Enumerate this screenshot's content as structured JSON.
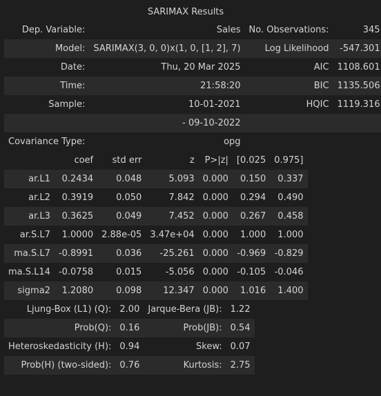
{
  "title": "SARIMAX Results",
  "summary": [
    [
      "Dep. Variable:",
      "Sales",
      "No. Observations:",
      "345"
    ],
    [
      "Model:",
      "SARIMAX(3, 0, 0)x(1, 0, [1, 2], 7)",
      "Log Likelihood",
      "-547.301"
    ],
    [
      "Date:",
      "Thu, 20 Mar 2025",
      "AIC",
      "1108.601"
    ],
    [
      "Time:",
      "21:58:20",
      "BIC",
      "1135.506"
    ],
    [
      "Sample:",
      "10-01-2021",
      "HQIC",
      "1119.316"
    ],
    [
      "",
      "- 09-10-2022",
      "",
      ""
    ],
    [
      "Covariance Type:",
      "opg",
      "",
      ""
    ]
  ],
  "coef_headers": [
    "",
    "coef",
    "std err",
    "z",
    "P>|z|",
    "[0.025",
    "0.975]"
  ],
  "coef_rows": [
    [
      "ar.L1",
      "0.2434",
      "0.048",
      "5.093",
      "0.000",
      "0.150",
      "0.337"
    ],
    [
      "ar.L2",
      "0.3919",
      "0.050",
      "7.842",
      "0.000",
      "0.294",
      "0.490"
    ],
    [
      "ar.L3",
      "0.3625",
      "0.049",
      "7.452",
      "0.000",
      "0.267",
      "0.458"
    ],
    [
      "ar.S.L7",
      "1.0000",
      "2.88e-05",
      "3.47e+04",
      "0.000",
      "1.000",
      "1.000"
    ],
    [
      "ma.S.L7",
      "-0.8991",
      "0.036",
      "-25.261",
      "0.000",
      "-0.969",
      "-0.829"
    ],
    [
      "ma.S.L14",
      "-0.0758",
      "0.015",
      "-5.056",
      "0.000",
      "-0.105",
      "-0.046"
    ],
    [
      "sigma2",
      "1.2080",
      "0.098",
      "12.347",
      "0.000",
      "1.016",
      "1.400"
    ]
  ],
  "diagnostics": [
    [
      "Ljung-Box (L1) (Q):",
      "2.00",
      "Jarque-Bera (JB):",
      "1.22"
    ],
    [
      "Prob(Q):",
      "0.16",
      "Prob(JB):",
      "0.54"
    ],
    [
      "Heteroskedasticity (H):",
      "0.94",
      "Skew:",
      "0.07"
    ],
    [
      "Prob(H) (two-sided):",
      "0.76",
      "Kurtosis:",
      "2.75"
    ]
  ]
}
